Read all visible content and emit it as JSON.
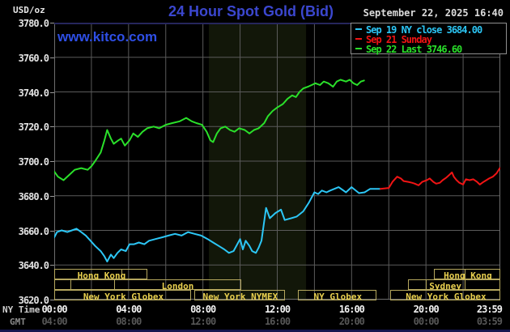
{
  "header": {
    "unit_label": "USD/oz",
    "title": "24 Hour Spot Gold (Bid)",
    "datetime": "September 22, 2025 16:40",
    "watermark": "www.kitco.com"
  },
  "legend": {
    "entries": [
      {
        "label": "Sep 19 NY close 3684.00",
        "color": "#2cc6f5"
      },
      {
        "label": "Sep 21 Sunday",
        "color": "#f01414"
      },
      {
        "label": "Sep 22 Last 3746.60",
        "color": "#2ae02a"
      }
    ]
  },
  "axes": {
    "ny_caption": "NY Time",
    "gmt_caption": "GMT",
    "tick_hours": [
      0,
      4,
      8,
      12,
      16,
      20,
      24
    ],
    "ny_tick_labels": [
      "00:00",
      "04:00",
      "08:00",
      "12:00",
      "16:00",
      "20:00",
      "23:59"
    ],
    "gmt_tick_labels": [
      "04:00",
      "08:00",
      "12:00",
      "16:00",
      "20:00",
      "00:00",
      "03:59"
    ]
  },
  "sessions": {
    "rows": [
      {
        "boxes": [
          {
            "label": "Hong Kong",
            "start": 0,
            "end": 5.0,
            "dividers": [
              3.57
            ]
          },
          {
            "label": "Hong Kong",
            "start": 20.42,
            "end": 24,
            "dividers": [
              22.03
            ]
          }
        ]
      },
      {
        "boxes": [
          {
            "label": "London",
            "start": 0,
            "end": 10.05,
            "dividers": [
              0.83,
              3.18
            ],
            "label_center": 6.6
          },
          {
            "label": "Sydney",
            "start": 19.03,
            "end": 24,
            "dividers": [
              19.95,
              22.03
            ],
            "label_center": 21.0
          }
        ]
      },
      {
        "boxes": [
          {
            "label": "New York Globex",
            "start": 0,
            "end": 7.36
          },
          {
            "label": "New York NYMEX",
            "start": 7.53,
            "end": 12.41
          },
          {
            "label": "NY Globex",
            "start": 13.1,
            "end": 17.33
          },
          {
            "label": "New York Globex",
            "start": 18.07,
            "end": 24
          }
        ]
      }
    ]
  },
  "chart_data": {
    "type": "line",
    "title": "24 Hour Spot Gold (Bid)",
    "y_unit": "USD/oz",
    "ylim": [
      3620,
      3780
    ],
    "y_tick_step": 20,
    "xlim_hours": [
      0,
      24
    ],
    "x_grid_step_hours": 2,
    "grid": true,
    "legend_position": "top-right",
    "nymex_band_hours": [
      8.32,
      13.55
    ],
    "band_color": "#121709",
    "grid_color": "#5a5a5a",
    "border_color": "#6e6e6e",
    "border_top_color": "#26265c",
    "series": [
      {
        "name": "Sep 19 NY close 3684.00",
        "color": "#2cc6f5",
        "points": [
          [
            0,
            3656
          ],
          [
            0.15,
            3659
          ],
          [
            0.4,
            3660
          ],
          [
            0.7,
            3659
          ],
          [
            0.95,
            3660
          ],
          [
            1.2,
            3661
          ],
          [
            1.45,
            3659
          ],
          [
            1.7,
            3657
          ],
          [
            1.95,
            3654
          ],
          [
            2.2,
            3651
          ],
          [
            2.5,
            3648
          ],
          [
            2.7,
            3645
          ],
          [
            2.85,
            3642
          ],
          [
            3.05,
            3646
          ],
          [
            3.2,
            3644
          ],
          [
            3.4,
            3647
          ],
          [
            3.6,
            3649
          ],
          [
            3.85,
            3648
          ],
          [
            4.05,
            3652
          ],
          [
            4.3,
            3652
          ],
          [
            4.55,
            3653
          ],
          [
            4.85,
            3652
          ],
          [
            5.1,
            3654
          ],
          [
            5.45,
            3655
          ],
          [
            5.8,
            3656
          ],
          [
            6.15,
            3657
          ],
          [
            6.5,
            3658
          ],
          [
            6.85,
            3657
          ],
          [
            7.2,
            3659
          ],
          [
            7.55,
            3658
          ],
          [
            7.9,
            3657
          ],
          [
            8.25,
            3655
          ],
          [
            8.55,
            3653
          ],
          [
            8.85,
            3651
          ],
          [
            9.15,
            3649
          ],
          [
            9.4,
            3647
          ],
          [
            9.65,
            3648
          ],
          [
            9.85,
            3652
          ],
          [
            10.0,
            3655
          ],
          [
            10.15,
            3649
          ],
          [
            10.3,
            3654
          ],
          [
            10.5,
            3651
          ],
          [
            10.65,
            3648
          ],
          [
            10.85,
            3647
          ],
          [
            11.0,
            3650
          ],
          [
            11.15,
            3654
          ],
          [
            11.4,
            3673
          ],
          [
            11.6,
            3667
          ],
          [
            11.9,
            3670
          ],
          [
            12.2,
            3672
          ],
          [
            12.4,
            3666
          ],
          [
            12.75,
            3667
          ],
          [
            13.05,
            3668
          ],
          [
            13.4,
            3671
          ],
          [
            13.7,
            3676
          ],
          [
            14.0,
            3682
          ],
          [
            14.2,
            3681
          ],
          [
            14.4,
            3683
          ],
          [
            14.65,
            3682
          ],
          [
            14.85,
            3683
          ],
          [
            15.3,
            3685
          ],
          [
            15.7,
            3682
          ],
          [
            16.0,
            3685
          ],
          [
            16.4,
            3681.5
          ],
          [
            16.7,
            3682
          ],
          [
            17.0,
            3684
          ],
          [
            17.55,
            3684
          ]
        ]
      },
      {
        "name": "Sep 21 Sunday",
        "color": "#f01414",
        "points": [
          [
            17.55,
            3684
          ],
          [
            18.0,
            3684.5
          ],
          [
            18.2,
            3688
          ],
          [
            18.45,
            3691
          ],
          [
            18.65,
            3690
          ],
          [
            18.8,
            3688.5
          ],
          [
            19.05,
            3688
          ],
          [
            19.25,
            3687.5
          ],
          [
            19.4,
            3687
          ],
          [
            19.6,
            3686
          ],
          [
            19.8,
            3688
          ],
          [
            20.05,
            3689
          ],
          [
            20.2,
            3690
          ],
          [
            20.4,
            3688
          ],
          [
            20.55,
            3687
          ],
          [
            20.75,
            3687.5
          ],
          [
            20.9,
            3689
          ],
          [
            21.1,
            3690.5
          ],
          [
            21.25,
            3692
          ],
          [
            21.4,
            3693.5
          ],
          [
            21.5,
            3691
          ],
          [
            21.65,
            3689
          ],
          [
            21.8,
            3687.5
          ],
          [
            22.0,
            3686.5
          ],
          [
            22.15,
            3689.5
          ],
          [
            22.35,
            3689
          ],
          [
            22.55,
            3689.5
          ],
          [
            22.75,
            3688
          ],
          [
            22.9,
            3686.5
          ],
          [
            23.1,
            3688
          ],
          [
            23.25,
            3689
          ],
          [
            23.4,
            3690
          ],
          [
            23.6,
            3691
          ],
          [
            23.8,
            3693
          ],
          [
            23.98,
            3696
          ]
        ]
      },
      {
        "name": "Sep 22 Last 3746.60",
        "color": "#2ae02a",
        "points": [
          [
            0,
            3694
          ],
          [
            0.2,
            3691
          ],
          [
            0.5,
            3689
          ],
          [
            0.8,
            3692
          ],
          [
            1.1,
            3695
          ],
          [
            1.45,
            3696
          ],
          [
            1.8,
            3695
          ],
          [
            2.0,
            3697
          ],
          [
            2.2,
            3700
          ],
          [
            2.5,
            3705
          ],
          [
            2.7,
            3712
          ],
          [
            2.85,
            3718
          ],
          [
            3.05,
            3713
          ],
          [
            3.2,
            3710
          ],
          [
            3.45,
            3712
          ],
          [
            3.6,
            3713
          ],
          [
            3.8,
            3709
          ],
          [
            4.05,
            3712
          ],
          [
            4.25,
            3716
          ],
          [
            4.5,
            3714
          ],
          [
            4.75,
            3717
          ],
          [
            5.0,
            3719
          ],
          [
            5.35,
            3720
          ],
          [
            5.65,
            3719
          ],
          [
            6.0,
            3721
          ],
          [
            6.35,
            3722
          ],
          [
            6.75,
            3723
          ],
          [
            7.1,
            3725
          ],
          [
            7.4,
            3723
          ],
          [
            7.65,
            3722
          ],
          [
            7.95,
            3721
          ],
          [
            8.2,
            3717
          ],
          [
            8.4,
            3712
          ],
          [
            8.55,
            3711
          ],
          [
            8.75,
            3716
          ],
          [
            8.95,
            3719
          ],
          [
            9.2,
            3720
          ],
          [
            9.45,
            3718
          ],
          [
            9.7,
            3717
          ],
          [
            9.95,
            3719
          ],
          [
            10.25,
            3718
          ],
          [
            10.5,
            3716
          ],
          [
            10.75,
            3718
          ],
          [
            11.0,
            3719
          ],
          [
            11.3,
            3722
          ],
          [
            11.5,
            3726
          ],
          [
            11.75,
            3729
          ],
          [
            12.0,
            3731
          ],
          [
            12.3,
            3733
          ],
          [
            12.55,
            3736
          ],
          [
            12.8,
            3738
          ],
          [
            13.0,
            3737
          ],
          [
            13.2,
            3740
          ],
          [
            13.4,
            3742
          ],
          [
            13.65,
            3743
          ],
          [
            13.85,
            3744
          ],
          [
            14.05,
            3745
          ],
          [
            14.3,
            3744
          ],
          [
            14.5,
            3746
          ],
          [
            14.75,
            3745
          ],
          [
            15.0,
            3743
          ],
          [
            15.2,
            3746
          ],
          [
            15.4,
            3747
          ],
          [
            15.7,
            3746
          ],
          [
            15.9,
            3747
          ],
          [
            16.1,
            3745
          ],
          [
            16.3,
            3744
          ],
          [
            16.5,
            3746
          ],
          [
            16.67,
            3746.6
          ]
        ]
      }
    ]
  }
}
